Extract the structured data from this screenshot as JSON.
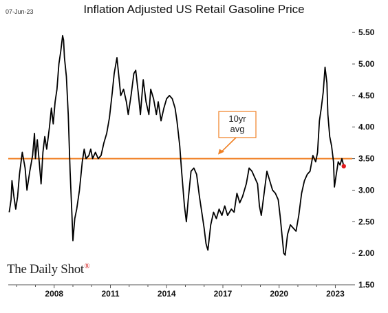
{
  "header": {
    "date_stamp": "07-Jun-23",
    "title": "Inflation Adjusted US Retail Gasoline Price"
  },
  "brand": {
    "name": "The Daily Shot",
    "mark": "®",
    "mark_color": "#cc0000"
  },
  "colors": {
    "series_line": "#000000",
    "avg_line": "#f07f22",
    "annotation_border": "#f07f22",
    "last_point": "#e31a1c",
    "axis": "#555555"
  },
  "chart_data": {
    "type": "line",
    "title": "Inflation Adjusted US Retail Gasoline Price",
    "xlabel": "",
    "ylabel": "",
    "x_range": [
      2005.55,
      2023.9
    ],
    "y_range": [
      1.5,
      5.6
    ],
    "x_ticks": [
      {
        "value": 2008,
        "label": "2008"
      },
      {
        "value": 2011,
        "label": "2011"
      },
      {
        "value": 2014,
        "label": "2014"
      },
      {
        "value": 2017,
        "label": "2017"
      },
      {
        "value": 2020,
        "label": "2020"
      },
      {
        "value": 2023,
        "label": "2023"
      }
    ],
    "y_ticks": [
      {
        "value": 5.5,
        "label": "5.50"
      },
      {
        "value": 5.0,
        "label": "5.00"
      },
      {
        "value": 4.5,
        "label": "4.50"
      },
      {
        "value": 4.0,
        "label": "4.00"
      },
      {
        "value": 3.5,
        "label": "3.50"
      },
      {
        "value": 3.0,
        "label": "3.00"
      },
      {
        "value": 2.5,
        "label": "2.50"
      },
      {
        "value": 2.0,
        "label": "2.00"
      },
      {
        "value": 1.5,
        "label": "1.50"
      }
    ],
    "y_axis_side": "right",
    "grid": false,
    "reference_line": {
      "label": "10yr avg",
      "label_lines": [
        "10yr",
        "avg"
      ],
      "value": 3.5
    },
    "last_point": {
      "x": 2023.45,
      "y": 3.38
    },
    "series": [
      {
        "points": [
          [
            2005.6,
            2.65
          ],
          [
            2005.7,
            2.85
          ],
          [
            2005.75,
            3.15
          ],
          [
            2005.85,
            2.9
          ],
          [
            2005.95,
            2.7
          ],
          [
            2006.05,
            2.9
          ],
          [
            2006.15,
            3.25
          ],
          [
            2006.3,
            3.6
          ],
          [
            2006.45,
            3.35
          ],
          [
            2006.55,
            3.0
          ],
          [
            2006.7,
            3.3
          ],
          [
            2006.85,
            3.55
          ],
          [
            2006.95,
            3.9
          ],
          [
            2007.0,
            3.5
          ],
          [
            2007.1,
            3.8
          ],
          [
            2007.2,
            3.45
          ],
          [
            2007.3,
            3.1
          ],
          [
            2007.4,
            3.6
          ],
          [
            2007.5,
            3.85
          ],
          [
            2007.6,
            3.65
          ],
          [
            2007.75,
            4.0
          ],
          [
            2007.85,
            4.3
          ],
          [
            2007.95,
            4.05
          ],
          [
            2008.05,
            4.4
          ],
          [
            2008.15,
            4.6
          ],
          [
            2008.25,
            5.0
          ],
          [
            2008.35,
            5.2
          ],
          [
            2008.45,
            5.45
          ],
          [
            2008.5,
            5.38
          ],
          [
            2008.55,
            5.1
          ],
          [
            2008.65,
            4.8
          ],
          [
            2008.75,
            4.2
          ],
          [
            2008.85,
            3.3
          ],
          [
            2008.95,
            2.6
          ],
          [
            2009.0,
            2.2
          ],
          [
            2009.1,
            2.55
          ],
          [
            2009.2,
            2.7
          ],
          [
            2009.35,
            3.0
          ],
          [
            2009.5,
            3.45
          ],
          [
            2009.6,
            3.65
          ],
          [
            2009.7,
            3.5
          ],
          [
            2009.85,
            3.55
          ],
          [
            2009.95,
            3.65
          ],
          [
            2010.05,
            3.5
          ],
          [
            2010.2,
            3.6
          ],
          [
            2010.35,
            3.5
          ],
          [
            2010.5,
            3.55
          ],
          [
            2010.65,
            3.75
          ],
          [
            2010.8,
            3.9
          ],
          [
            2010.95,
            4.15
          ],
          [
            2011.1,
            4.55
          ],
          [
            2011.2,
            4.85
          ],
          [
            2011.35,
            5.1
          ],
          [
            2011.45,
            4.8
          ],
          [
            2011.55,
            4.5
          ],
          [
            2011.7,
            4.6
          ],
          [
            2011.85,
            4.4
          ],
          [
            2011.95,
            4.2
          ],
          [
            2012.1,
            4.5
          ],
          [
            2012.25,
            4.85
          ],
          [
            2012.35,
            4.9
          ],
          [
            2012.5,
            4.5
          ],
          [
            2012.6,
            4.2
          ],
          [
            2012.75,
            4.75
          ],
          [
            2012.9,
            4.4
          ],
          [
            2013.05,
            4.2
          ],
          [
            2013.15,
            4.6
          ],
          [
            2013.3,
            4.45
          ],
          [
            2013.45,
            4.2
          ],
          [
            2013.55,
            4.4
          ],
          [
            2013.7,
            4.1
          ],
          [
            2013.85,
            4.3
          ],
          [
            2014.0,
            4.45
          ],
          [
            2014.15,
            4.5
          ],
          [
            2014.3,
            4.45
          ],
          [
            2014.45,
            4.3
          ],
          [
            2014.55,
            4.1
          ],
          [
            2014.7,
            3.7
          ],
          [
            2014.8,
            3.3
          ],
          [
            2014.95,
            2.75
          ],
          [
            2015.05,
            2.5
          ],
          [
            2015.15,
            2.85
          ],
          [
            2015.3,
            3.3
          ],
          [
            2015.45,
            3.35
          ],
          [
            2015.6,
            3.25
          ],
          [
            2015.75,
            2.9
          ],
          [
            2015.9,
            2.6
          ],
          [
            2016.0,
            2.4
          ],
          [
            2016.1,
            2.15
          ],
          [
            2016.2,
            2.05
          ],
          [
            2016.35,
            2.45
          ],
          [
            2016.5,
            2.65
          ],
          [
            2016.65,
            2.55
          ],
          [
            2016.8,
            2.7
          ],
          [
            2016.95,
            2.6
          ],
          [
            2017.1,
            2.75
          ],
          [
            2017.25,
            2.6
          ],
          [
            2017.45,
            2.7
          ],
          [
            2017.6,
            2.65
          ],
          [
            2017.75,
            2.95
          ],
          [
            2017.9,
            2.8
          ],
          [
            2018.05,
            2.9
          ],
          [
            2018.25,
            3.1
          ],
          [
            2018.4,
            3.35
          ],
          [
            2018.55,
            3.3
          ],
          [
            2018.7,
            3.2
          ],
          [
            2018.85,
            3.1
          ],
          [
            2018.95,
            2.75
          ],
          [
            2019.05,
            2.6
          ],
          [
            2019.2,
            2.95
          ],
          [
            2019.35,
            3.3
          ],
          [
            2019.5,
            3.15
          ],
          [
            2019.65,
            3.0
          ],
          [
            2019.8,
            2.95
          ],
          [
            2019.95,
            2.85
          ],
          [
            2020.05,
            2.6
          ],
          [
            2020.15,
            2.3
          ],
          [
            2020.25,
            2.0
          ],
          [
            2020.32,
            1.97
          ],
          [
            2020.45,
            2.3
          ],
          [
            2020.6,
            2.45
          ],
          [
            2020.75,
            2.4
          ],
          [
            2020.9,
            2.35
          ],
          [
            2021.05,
            2.6
          ],
          [
            2021.2,
            2.95
          ],
          [
            2021.35,
            3.15
          ],
          [
            2021.5,
            3.25
          ],
          [
            2021.65,
            3.3
          ],
          [
            2021.8,
            3.55
          ],
          [
            2021.95,
            3.45
          ],
          [
            2022.05,
            3.6
          ],
          [
            2022.15,
            4.1
          ],
          [
            2022.25,
            4.3
          ],
          [
            2022.35,
            4.55
          ],
          [
            2022.45,
            4.95
          ],
          [
            2022.55,
            4.7
          ],
          [
            2022.6,
            4.2
          ],
          [
            2022.7,
            3.85
          ],
          [
            2022.8,
            3.7
          ],
          [
            2022.9,
            3.45
          ],
          [
            2022.95,
            3.05
          ],
          [
            2023.05,
            3.25
          ],
          [
            2023.15,
            3.45
          ],
          [
            2023.25,
            3.4
          ],
          [
            2023.35,
            3.5
          ],
          [
            2023.45,
            3.38
          ]
        ]
      }
    ]
  }
}
